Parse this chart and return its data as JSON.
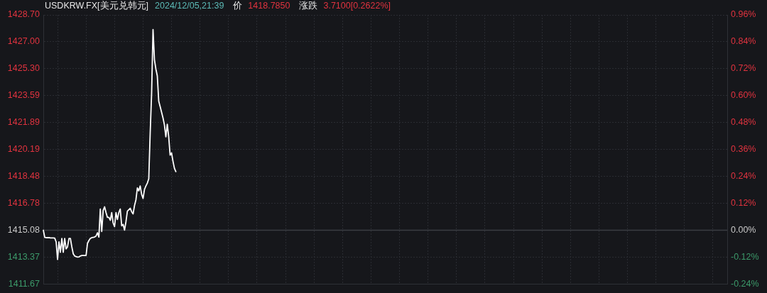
{
  "chart_data": {
    "type": "line",
    "title": "USDKRW.FX[美元兑韩元]",
    "subtitle": "2024/12/05,21:39",
    "annotations": [
      "价",
      "1418.7850",
      "涨跌",
      "3.7100[0.2622%]"
    ],
    "categories": [
      null,
      null,
      null,
      null,
      null,
      null,
      null,
      null,
      null,
      null,
      null,
      null,
      null,
      null,
      null,
      null,
      null,
      null,
      null,
      null,
      null,
      null,
      null,
      null,
      null,
      null,
      null,
      null,
      null,
      null,
      null,
      null,
      null,
      null,
      null,
      null,
      null,
      null,
      null,
      null,
      null,
      null,
      null,
      null,
      null,
      null,
      null,
      null,
      null,
      null,
      null,
      null,
      null,
      null,
      null,
      null,
      null,
      null,
      null,
      null,
      null,
      null,
      null,
      null,
      null,
      null,
      null,
      null,
      null,
      null,
      null,
      null,
      null,
      null,
      null,
      null,
      null,
      null,
      null,
      null,
      null,
      null,
      null,
      null,
      null,
      null,
      null,
      null,
      null,
      null,
      null,
      null,
      null,
      null,
      null,
      null,
      null,
      null,
      null,
      null,
      null,
      null,
      null,
      null,
      null,
      null,
      null,
      null,
      null,
      null,
      null,
      null,
      null,
      null,
      null,
      null,
      null,
      null,
      null,
      null,
      null,
      null,
      null,
      null,
      null,
      null,
      null,
      null,
      null,
      null,
      null,
      null,
      null,
      null,
      null,
      null,
      null,
      null,
      null,
      null,
      null,
      null,
      null,
      null,
      null,
      null,
      null,
      null,
      null,
      null,
      null,
      null,
      null,
      null,
      null,
      null,
      null,
      null,
      null,
      null,
      null,
      null,
      null,
      null,
      null,
      null,
      null,
      null,
      null,
      null,
      null,
      null,
      null,
      null,
      null,
      null,
      null,
      null,
      null,
      null,
      null,
      null,
      null,
      null,
      null,
      null,
      null,
      null,
      null,
      null,
      null,
      null,
      null,
      null,
      null,
      null,
      null,
      null,
      null,
      null,
      null,
      null,
      null,
      null,
      null,
      null,
      null,
      null,
      null,
      null,
      null,
      null,
      null,
      null,
      null,
      null,
      null,
      null,
      null,
      null,
      null,
      null,
      null,
      null,
      null,
      null,
      null,
      null,
      null,
      null,
      null,
      null,
      null,
      null,
      null,
      null,
      null,
      null,
      null,
      null,
      null,
      null,
      null,
      null,
      null,
      null,
      null,
      null,
      null,
      null,
      null,
      null,
      null,
      null,
      null,
      null,
      null,
      null,
      null,
      null,
      null,
      null,
      null,
      null,
      null,
      null,
      null,
      null,
      null,
      null,
      null,
      null,
      null,
      null,
      null,
      null,
      null,
      null,
      null,
      null,
      null,
      null,
      null,
      null,
      null,
      null,
      null,
      null,
      null,
      null,
      null,
      null,
      null,
      null,
      null,
      null,
      null,
      null,
      null,
      null,
      null,
      null,
      null,
      null,
      null,
      null,
      null,
      null,
      null,
      null,
      null,
      null,
      null,
      null,
      null,
      null,
      null,
      null,
      null,
      null,
      null,
      null,
      null,
      null,
      null,
      null,
      null,
      null,
      null,
      null,
      null,
      null,
      null,
      null,
      null,
      null,
      null,
      null,
      null,
      null,
      null,
      null,
      null,
      null,
      null,
      null,
      null,
      null,
      null,
      null,
      null,
      null,
      null,
      null,
      null,
      null,
      null,
      null,
      null,
      null,
      null,
      null,
      null,
      null,
      null,
      null,
      null,
      null,
      null,
      null,
      null,
      null,
      null,
      null,
      null,
      null,
      null,
      null,
      null,
      null,
      null,
      null,
      null,
      null,
      null,
      null,
      null,
      null,
      null,
      null,
      null,
      null,
      null,
      null,
      null,
      null,
      null,
      null,
      null,
      null,
      null,
      null,
      null,
      null,
      null,
      null,
      null,
      null,
      null,
      null,
      null,
      null,
      null,
      null,
      null,
      null,
      null,
      null,
      null,
      null,
      null,
      null,
      null,
      null,
      null,
      null,
      null,
      null,
      null,
      null,
      null,
      null,
      null,
      null,
      null,
      null,
      null,
      null,
      null,
      null,
      null,
      null,
      null,
      null,
      null,
      null,
      null,
      null,
      null,
      null,
      null,
      null,
      null,
      null,
      null,
      null,
      null,
      null,
      null,
      null,
      null,
      null,
      null,
      null,
      null,
      null,
      null,
      null,
      null,
      null,
      null,
      null,
      null,
      null,
      null,
      null,
      null,
      null,
      null,
      null,
      null
    ],
    "series": [
      {
        "color": "#ffffff",
        "values": [
          1415.08,
          1414.63,
          1414.61,
          1414.61,
          1414.61,
          1414.59,
          1414.59,
          1414.59,
          1414.58,
          1414.34,
          1413.23,
          1414.34,
          1413.68,
          1414.56,
          1413.68,
          1414.56,
          1413.9,
          1414.03,
          1414.56,
          1414.56,
          1414.03,
          1413.59,
          1413.45,
          1413.41,
          1413.38,
          1413.39,
          1413.45,
          1413.48,
          1413.48,
          1413.48,
          1413.48,
          1414.25,
          1414.43,
          1414.56,
          1414.61,
          1414.63,
          1414.65,
          1414.71,
          1414.92,
          1414.65,
          1416.42,
          1415.0,
          1416.33,
          1416.56,
          1416.2,
          1415.89,
          1415.89,
          1415.71,
          1416.2,
          1415.54,
          1415.31,
          1416.2,
          1415.76,
          1416.2,
          1416.42,
          1415.36,
          1415.45,
          1415.09,
          1415.62,
          1416.29,
          1416.38,
          1416.47,
          1416.25,
          1416.11,
          1416.64,
          1417.0,
          1417.75,
          1417.57,
          1417.88,
          1417.35,
          1417.09,
          1417.66,
          1417.88,
          1418.06,
          1418.33,
          1421.21,
          1423.73,
          1427.77,
          1425.86,
          1425.28,
          1424.84,
          1423.25,
          1422.9,
          1422.54,
          1422.18,
          1421.74,
          1420.99,
          1421.78,
          1420.99,
          1419.83,
          1419.97,
          1419.44,
          1419.0,
          1418.79,
          null,
          null,
          null,
          null,
          null,
          null,
          null,
          null,
          null,
          null,
          null,
          null,
          null,
          null,
          null,
          null,
          null,
          null,
          null,
          null,
          null,
          null,
          null,
          null,
          null,
          null,
          null,
          null,
          null,
          null,
          null,
          null,
          null,
          null,
          null,
          null,
          null,
          null,
          null,
          null,
          null,
          null,
          null,
          null,
          null,
          null,
          null,
          null,
          null,
          null,
          null,
          null,
          null,
          null,
          null,
          null,
          null,
          null,
          null,
          null,
          null,
          null,
          null,
          null,
          null,
          null,
          null,
          null,
          null,
          null,
          null,
          null,
          null,
          null,
          null,
          null,
          null,
          null,
          null,
          null,
          null,
          null,
          null,
          null,
          null,
          null,
          null,
          null,
          null,
          null,
          null,
          null,
          null,
          null,
          null,
          null,
          null,
          null,
          null,
          null,
          null,
          null,
          null,
          null,
          null,
          null,
          null,
          null,
          null,
          null,
          null,
          null,
          null,
          null,
          null,
          null,
          null,
          null,
          null,
          null,
          null,
          null,
          null,
          null,
          null,
          null,
          null,
          null,
          null,
          null,
          null,
          null,
          null,
          null,
          null,
          null,
          null,
          null,
          null,
          null,
          null,
          null,
          null,
          null,
          null,
          null,
          null,
          null,
          null,
          null,
          null,
          null,
          null,
          null,
          null,
          null,
          null,
          null,
          null,
          null,
          null,
          null,
          null,
          null,
          null,
          null,
          null,
          null,
          null,
          null,
          null,
          null,
          null,
          null,
          null,
          null,
          null,
          null,
          null,
          null,
          null,
          null,
          null,
          null,
          null,
          null,
          null,
          null,
          null,
          null,
          null,
          null,
          null,
          null,
          null,
          null,
          null,
          null,
          null,
          null,
          null,
          null,
          null,
          null,
          null,
          null,
          null,
          null,
          null,
          null,
          null,
          null,
          null,
          null,
          null,
          null,
          null,
          null,
          null,
          null,
          null,
          null,
          null,
          null,
          null,
          null,
          null,
          null,
          null,
          null,
          null,
          null,
          null,
          null,
          null,
          null,
          null,
          null,
          null,
          null,
          null,
          null,
          null,
          null,
          null,
          null,
          null,
          null,
          null,
          null,
          null,
          null,
          null,
          null,
          null,
          null,
          null,
          null,
          null,
          null,
          null,
          null,
          null,
          null,
          null,
          null,
          null,
          null,
          null,
          null,
          null,
          null,
          null,
          null,
          null,
          null,
          null,
          null,
          null,
          null,
          null,
          null,
          null,
          null,
          null,
          null,
          null,
          null,
          null,
          null,
          null,
          null,
          null,
          null,
          null,
          null,
          null,
          null,
          null,
          null,
          null,
          null,
          null,
          null,
          null,
          null,
          null,
          null,
          null,
          null,
          null,
          null,
          null,
          null,
          null,
          null,
          null,
          null,
          null,
          null,
          null,
          null,
          null,
          null,
          null,
          null,
          null,
          null,
          null,
          null,
          null,
          null,
          null,
          null,
          null,
          null,
          null,
          null,
          null,
          null,
          null,
          null,
          null,
          null,
          null,
          null,
          null,
          null,
          null,
          null,
          null,
          null,
          null,
          null,
          null,
          null,
          null,
          null,
          null,
          null,
          null,
          null,
          null,
          null,
          null,
          null,
          null,
          null,
          null,
          null,
          null,
          null,
          null,
          null,
          null,
          null,
          null,
          null,
          null,
          null,
          null,
          null,
          null,
          null,
          null,
          null,
          null
        ]
      }
    ],
    "ylim": [
      1411.67,
      1428.7
    ],
    "yticks": [
      {
        "value": 1411.67,
        "label": "1411.67"
      },
      {
        "value": 1413.37,
        "label": "1413.37"
      },
      {
        "value": 1415.08,
        "label": "1415.08"
      },
      {
        "value": 1416.78,
        "label": "1416.78"
      },
      {
        "value": 1418.48,
        "label": "1418.48"
      },
      {
        "value": 1420.19,
        "label": "1420.19"
      },
      {
        "value": 1421.89,
        "label": "1421.89"
      },
      {
        "value": 1423.59,
        "label": "1423.59"
      },
      {
        "value": 1425.3,
        "label": "1425.30"
      },
      {
        "value": 1427.0,
        "label": "1427.00"
      },
      {
        "value": 1428.7,
        "label": "1428.70"
      }
    ],
    "y2lim": [
      -0.24,
      0.96
    ],
    "y2ticks": [
      {
        "value": -0.24,
        "label": "-0.24%"
      },
      {
        "value": -0.12,
        "label": "-0.12%"
      },
      {
        "value": 0,
        "label": "0.00%"
      },
      {
        "value": 0.12,
        "label": "0.12%"
      },
      {
        "value": 0.24,
        "label": "0.24%"
      },
      {
        "value": 0.36,
        "label": "0.36%"
      },
      {
        "value": 0.48,
        "label": "0.48%"
      },
      {
        "value": 0.6,
        "label": "0.60%"
      },
      {
        "value": 0.72,
        "label": "0.72%"
      },
      {
        "value": 0.84,
        "label": "0.84%"
      },
      {
        "value": 0.96,
        "label": "0.96%"
      }
    ],
    "ref_lines": [
      {
        "axis": "y",
        "value": 1415.08,
        "color": "#3b3d43"
      }
    ],
    "grid": true,
    "legend": false
  }
}
